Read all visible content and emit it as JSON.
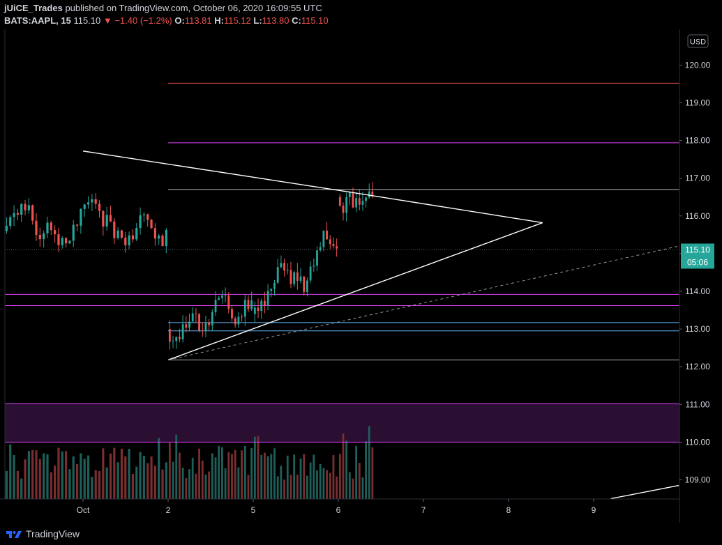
{
  "header": {
    "author": "jUiCE_Trades",
    "published_text": "published on TradingView.com, October 06, 2020 16:09:55 UTC",
    "symbol": "BATS:AAPL, 15",
    "last": "115.10",
    "change": "−1.40 (−1.2%)",
    "o_label": "O:",
    "o": "113.81",
    "h_label": "H:",
    "h": "115.12",
    "l_label": "L:",
    "l": "113.80",
    "c_label": "C:",
    "c": "115.10"
  },
  "footer": {
    "brand": "TradingView"
  },
  "colors": {
    "up": "#26a69a",
    "down": "#ef5350",
    "vol_up": "#1e5f5a",
    "vol_down": "#7a2e30",
    "magenta": "#e040fb",
    "red_line": "#ef5350",
    "blue_line": "#64b5f6",
    "white_line": "#ffffff",
    "grey_line": "#b2b5be"
  },
  "chart_data": {
    "type": "candlestick",
    "currency": "USD",
    "y_ticks": [
      "109.00",
      "110.00",
      "111.00",
      "112.00",
      "113.00",
      "114.00",
      "115.00",
      "116.00",
      "117.00",
      "118.00",
      "119.00",
      "120.00"
    ],
    "ylim": [
      108.5,
      121.3
    ],
    "x_ticks": [
      {
        "label": "Oct",
        "t": 0
      },
      {
        "label": "2",
        "t": 1
      },
      {
        "label": "5",
        "t": 2
      },
      {
        "label": "6",
        "t": 3
      },
      {
        "label": "7",
        "t": 4
      },
      {
        "label": "8",
        "t": 5
      },
      {
        "label": "9",
        "t": 6
      }
    ],
    "last_price_label": "115.10",
    "countdown_label": "05:06",
    "last_price": 115.1,
    "horizontal_levels": [
      {
        "price": 119.52,
        "color": "red",
        "t_start": 1.0
      },
      {
        "price": 117.94,
        "color": "magenta",
        "t_start": 1.0
      },
      {
        "price": 116.7,
        "color": "grey",
        "t_start": 1.0
      },
      {
        "price": 113.92,
        "color": "magenta",
        "t_start": -1.0
      },
      {
        "price": 113.62,
        "color": "magenta",
        "t_start": -1.0
      },
      {
        "price": 113.17,
        "color": "blue",
        "t_start": 1.0
      },
      {
        "price": 112.95,
        "color": "blue",
        "t_start": 1.0
      },
      {
        "price": 112.18,
        "color": "grey",
        "t_start": 1.0
      },
      {
        "price": 111.02,
        "color": "magenta",
        "t_start": -1.0
      },
      {
        "price": 110.0,
        "color": "magenta",
        "t_start": -1.0
      }
    ],
    "zone": {
      "top": 111.02,
      "bottom": 110.0
    },
    "trendlines": [
      {
        "t1": 0.0,
        "p1": 117.72,
        "t2": 3.0,
        "p2": 116.68,
        "style": "solid"
      },
      {
        "t1": 3.0,
        "p1": 116.68,
        "t2": 5.4,
        "p2": 115.82,
        "style": "solid"
      },
      {
        "t1": 1.0,
        "p1": 112.18,
        "t2": 5.4,
        "p2": 115.82,
        "style": "solid"
      },
      {
        "t1": 1.0,
        "p1": 112.18,
        "t2": 7.0,
        "p2": 115.2,
        "style": "dashed"
      },
      {
        "t1": 6.2,
        "p1": 108.5,
        "t2": 7.0,
        "p2": 108.85,
        "style": "solid"
      }
    ],
    "sessions": [
      {
        "t_start": -0.92,
        "t_end": 1.0,
        "count": 44,
        "start_price": 115.6,
        "range": [
          115.2,
          117.2
        ],
        "seed": 11
      },
      {
        "t_start": 1.0,
        "t_end": 2.0,
        "count": 26,
        "start_price": 113.0,
        "range": [
          112.5,
          115.2
        ],
        "seed": 23
      },
      {
        "t_start": 2.0,
        "t_end": 3.0,
        "count": 26,
        "start_price": 113.4,
        "range": [
          113.0,
          116.7
        ],
        "seed": 37
      },
      {
        "t_start": 3.0,
        "t_end": 3.42,
        "count": 11,
        "start_price": 116.5,
        "range": [
          113.5,
          116.7
        ],
        "seed": 51
      }
    ],
    "volume_max": 1.0
  }
}
